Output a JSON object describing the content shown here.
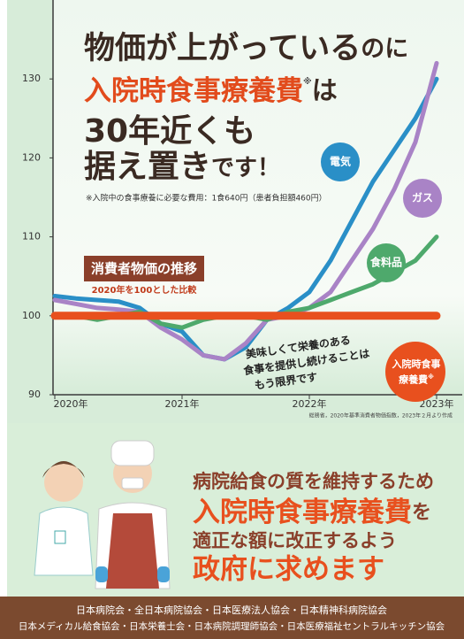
{
  "chart_data": {
    "type": "line",
    "headline": {
      "line1": [
        "物価が上がっている",
        "のに"
      ],
      "line2": [
        "入院時食事療養費",
        "※",
        "は"
      ],
      "line3": "30年近くも",
      "line4": [
        "据え置き",
        "です！"
      ]
    },
    "footnote": "※入院中の食事療養に必要な費用：1食640円（患者負担額460円）",
    "title": "消費者物価の推移",
    "subtitle": "2020年を100とした比較",
    "annotation": [
      "美味しくて栄養のある",
      "食事を提供し続けることは",
      "もう限界です"
    ],
    "source": "総務省，2020年基準消費者物価指数，2023年２月より作成",
    "note_mark": "※",
    "x": [
      0,
      2,
      4,
      6,
      8,
      10,
      12,
      14,
      16,
      18,
      20,
      22,
      24,
      26,
      28,
      30,
      32,
      34,
      36
    ],
    "xlim": [
      0,
      38
    ],
    "xticks": [
      {
        "value": 0,
        "label": "2020年"
      },
      {
        "value": 12,
        "label": "2021年"
      },
      {
        "value": 24,
        "label": "2022年"
      },
      {
        "value": 36,
        "label": "2023年"
      }
    ],
    "ylim": [
      90,
      140
    ],
    "yticks": [
      90,
      100,
      110,
      120,
      130
    ],
    "series": [
      {
        "name": "電気",
        "color": "#2a8fc7",
        "values": [
          102.5,
          102.2,
          102,
          101.8,
          101,
          99,
          98,
          95,
          94.5,
          96,
          99.5,
          101,
          103,
          107,
          112,
          117,
          121,
          125,
          130
        ]
      },
      {
        "name": "ガス",
        "color": "#a983c6",
        "values": [
          102,
          101.5,
          101,
          100.8,
          100.5,
          98.5,
          97,
          95,
          94.5,
          96.5,
          99.5,
          100,
          101,
          103,
          107,
          111,
          116,
          122,
          132
        ]
      },
      {
        "name": "食料品",
        "color": "#4ea96c",
        "values": [
          100.2,
          100,
          99.5,
          100,
          100.5,
          99,
          98.5,
          99.5,
          100,
          100,
          99.5,
          100.5,
          101,
          102,
          103,
          104,
          105.5,
          107,
          110
        ]
      },
      {
        "name": "入院時食事療養費",
        "color": "#e8501e",
        "values": [
          100,
          100,
          100,
          100,
          100,
          100,
          100,
          100,
          100,
          100,
          100,
          100,
          100,
          100,
          100,
          100,
          100,
          100,
          100
        ]
      }
    ]
  },
  "appeal": {
    "line1": "病院給食の質を維持するため",
    "line2": [
      "入院時食事療養費",
      "を"
    ],
    "line3": "適正な額に改正するよう",
    "line4": "政府に求めます"
  },
  "footer": [
    "日本病院会・全日本病院協会・日本医療法人協会・日本精神科病院協会",
    "日本メディカル給食協会・日本栄養士会・日本病院調理師協会・日本医療福祉セントラルキッチン協会"
  ]
}
